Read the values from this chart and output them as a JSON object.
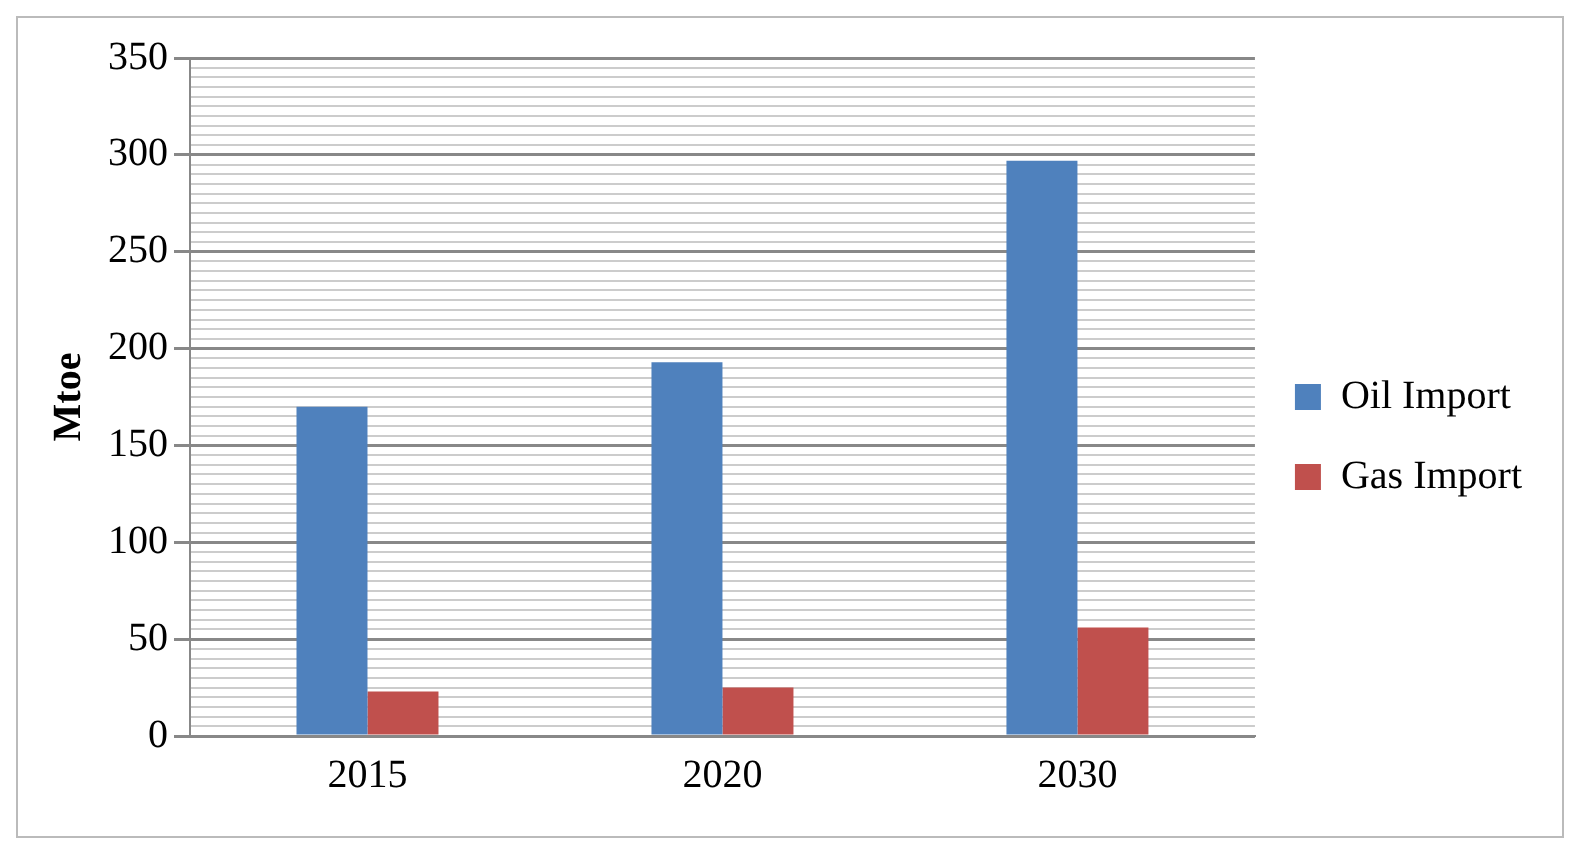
{
  "chart_data": {
    "type": "bar",
    "ylabel": "Mtoe",
    "categories": [
      "2015",
      "2020",
      "2030"
    ],
    "series": [
      {
        "name": "Oil Import",
        "color": "#4f81bd",
        "values": [
          170,
          193,
          297
        ]
      },
      {
        "name": "Gas Import",
        "color": "#c0504d",
        "values": [
          23,
          25,
          56
        ]
      }
    ],
    "ylim": [
      0,
      350
    ],
    "yticks": [
      0,
      {
        "value": 5,
        "label": null
      },
      {
        "value": 10,
        "label": null
      },
      {
        "value": 15,
        "label": null
      },
      {
        "value": 20,
        "label": null
      },
      {
        "value": 25,
        "label": null
      },
      {
        "value": 30,
        "label": null
      },
      {
        "value": 35,
        "label": null
      },
      {
        "value": 40,
        "label": null
      },
      {
        "value": 45,
        "label": null
      },
      50,
      {
        "value": 55,
        "label": null
      },
      {
        "value": 60,
        "label": null
      },
      {
        "value": 65,
        "label": null
      },
      {
        "value": 70,
        "label": null
      },
      {
        "value": 75,
        "label": null
      },
      {
        "value": 80,
        "label": null
      },
      {
        "value": 85,
        "label": null
      },
      {
        "value": 90,
        "label": null
      },
      {
        "value": 95,
        "label": null
      },
      100,
      {
        "value": 105,
        "label": null
      },
      {
        "value": 110,
        "label": null
      },
      {
        "value": 115,
        "label": null
      },
      {
        "value": 120,
        "label": null
      },
      {
        "value": 125,
        "label": null
      },
      {
        "value": 130,
        "label": null
      },
      {
        "value": 135,
        "label": null
      },
      {
        "value": 140,
        "label": null
      },
      {
        "value": 145,
        "label": null
      },
      150,
      {
        "value": 155,
        "label": null
      },
      {
        "value": 160,
        "label": null
      },
      {
        "value": 165,
        "label": null
      },
      {
        "value": 170,
        "label": null
      },
      {
        "value": 175,
        "label": null
      },
      {
        "value": 180,
        "label": null
      },
      {
        "value": 185,
        "label": null
      },
      {
        "value": 190,
        "label": null
      },
      {
        "value": 195,
        "label": null
      },
      200,
      {
        "value": 205,
        "label": null
      },
      {
        "value": 210,
        "label": null
      },
      {
        "value": 215,
        "label": null
      },
      {
        "value": 220,
        "label": null
      },
      {
        "value": 225,
        "label": null
      },
      {
        "value": 230,
        "label": null
      },
      {
        "value": 235,
        "label": null
      },
      {
        "value": 240,
        "label": null
      },
      {
        "value": 245,
        "label": null
      },
      250,
      {
        "value": 255,
        "label": null
      },
      {
        "value": 260,
        "label": null
      },
      {
        "value": 265,
        "label": null
      },
      {
        "value": 270,
        "label": null
      },
      {
        "value": 275,
        "label": null
      },
      {
        "value": 280,
        "label": null
      },
      {
        "value": 285,
        "label": null
      },
      {
        "value": 290,
        "label": null
      },
      {
        "value": 295,
        "label": null
      },
      300,
      {
        "value": 305,
        "label": null
      },
      {
        "value": 310,
        "label": null
      },
      {
        "value": 315,
        "label": null
      },
      {
        "value": 320,
        "label": null
      },
      {
        "value": 325,
        "label": null
      },
      {
        "value": 330,
        "label": null
      },
      {
        "value": 335,
        "label": null
      },
      {
        "value": 340,
        "label": null
      },
      {
        "value": 345,
        "label": null
      },
      350
    ],
    "grid": "y",
    "legend": "right"
  }
}
